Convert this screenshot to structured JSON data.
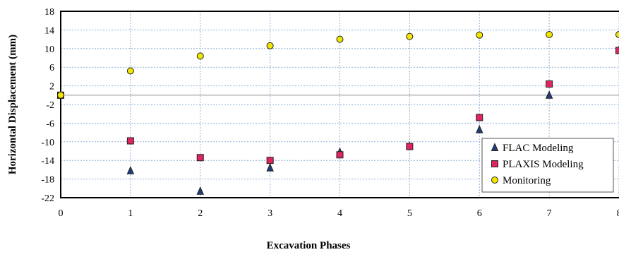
{
  "chart_data": {
    "type": "scatter",
    "title": "",
    "xlabel": "Excavation Phases",
    "ylabel": "Horizontal Displacement (mm)",
    "xlim": [
      0,
      8
    ],
    "ylim": [
      -22,
      18
    ],
    "x_ticks": [
      "0",
      "1",
      "2",
      "3",
      "4",
      "5",
      "6",
      "7",
      "8"
    ],
    "y_ticks": [
      "18",
      "14",
      "10",
      "6",
      "2",
      "-2",
      "-6",
      "-10",
      "-14",
      "-18",
      "-22"
    ],
    "grid": true,
    "legend_position": "bottom-right",
    "series": [
      {
        "name": "FLAC Modeling",
        "marker": "triangle",
        "color": "#1f3d7a",
        "x": [
          0,
          1,
          2,
          3,
          4,
          5,
          6,
          7,
          8
        ],
        "y": [
          0,
          -16.2,
          -20.6,
          -15.6,
          -12.2,
          -11,
          -7.4,
          0,
          9.6
        ]
      },
      {
        "name": "PLAXIS Modeling",
        "marker": "square",
        "color": "#e0245e",
        "x": [
          0,
          1,
          2,
          3,
          4,
          5,
          6,
          7,
          8
        ],
        "y": [
          0,
          -9.8,
          -13.4,
          -14,
          -12.8,
          -11,
          -4.8,
          2.4,
          9.6
        ]
      },
      {
        "name": "Monitoring",
        "marker": "circle",
        "color": "#f2e600",
        "x": [
          0,
          1,
          2,
          3,
          4,
          5,
          6,
          7,
          8
        ],
        "y": [
          0,
          5.2,
          8.4,
          10.6,
          12,
          12.6,
          12.9,
          13,
          13
        ]
      }
    ]
  }
}
